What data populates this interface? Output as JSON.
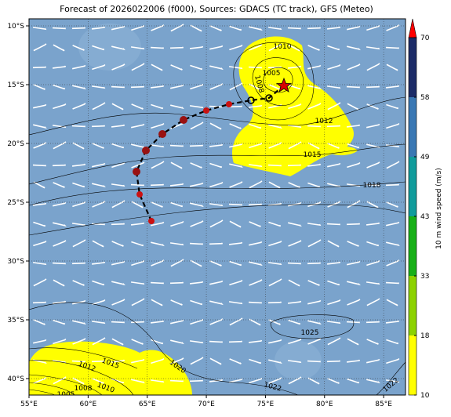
{
  "title": "Forecast of 2026022006 (f000), Sources: GDACS (TC track), GFS (Meteo)",
  "map": {
    "xlim": [
      55,
      86.85
    ],
    "ylim": [
      -41.4,
      -9.4
    ],
    "xticks": [
      {
        "value": 55,
        "label": "55°E"
      },
      {
        "value": 60,
        "label": "60°E"
      },
      {
        "value": 65,
        "label": "65°E"
      },
      {
        "value": 70,
        "label": "70°E"
      },
      {
        "value": 75,
        "label": "75°E"
      },
      {
        "value": 80,
        "label": "80°E"
      },
      {
        "value": 85,
        "label": "85°E"
      }
    ],
    "yticks": [
      {
        "value": -10,
        "label": "10°S"
      },
      {
        "value": -15,
        "label": "15°S"
      },
      {
        "value": -20,
        "label": "20°S"
      },
      {
        "value": -25,
        "label": "25°S"
      },
      {
        "value": -30,
        "label": "30°S"
      },
      {
        "value": -35,
        "label": "35°S"
      },
      {
        "value": -40,
        "label": "40°S"
      }
    ]
  },
  "colorbar": {
    "label": "10 m wind speed (m/s)",
    "ticks": [
      10,
      18,
      33,
      43,
      49,
      58,
      70
    ],
    "colors": [
      "#ffff00",
      "#8cd200",
      "#18b018",
      "#109c9c",
      "#3a78b4",
      "#1c2c68"
    ],
    "extend_color": "#ff0000"
  },
  "isobar_labels": [
    "1010",
    "1005",
    "1008",
    "1012",
    "1015",
    "1018",
    "1025",
    "1020",
    "1022",
    "1012",
    "1015",
    "1008",
    "1010",
    "1005",
    "1022"
  ]
}
